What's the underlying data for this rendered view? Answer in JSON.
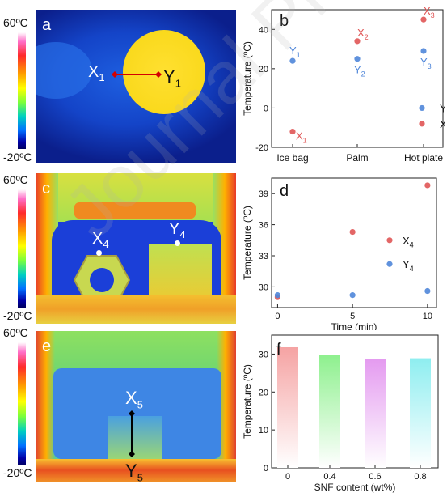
{
  "colorbar": {
    "max": "60ºC",
    "min": "-20ºC"
  },
  "watermark": "Journal Pre-proof",
  "panels": {
    "a": {
      "label": "a",
      "x_label": "X",
      "x_sub": "1",
      "y_label": "Y",
      "y_sub": "1"
    },
    "c": {
      "label": "c",
      "x_label": "X",
      "x_sub": "4",
      "y_label": "Y",
      "y_sub": "4"
    },
    "e": {
      "label": "e",
      "x_label": "X",
      "x_sub": "5",
      "y_label": "Y",
      "y_sub": "5"
    }
  },
  "chart_data": [
    {
      "panel": "b",
      "type": "scatter",
      "categories": [
        "Ice bag",
        "Palm",
        "Hot plate"
      ],
      "ylabel": "Temperature (ºC)",
      "ylim": [
        -20,
        50
      ],
      "yticks": [
        -20,
        0,
        20,
        40
      ],
      "series": [
        {
          "name": "X",
          "color": "#e05555",
          "values": [
            -12,
            34,
            45
          ],
          "labels": [
            "X1",
            "X2",
            "X3"
          ]
        },
        {
          "name": "Y",
          "color": "#4f86d9",
          "values": [
            24,
            25,
            29
          ],
          "labels": [
            "Y1",
            "Y2",
            "Y3"
          ]
        }
      ],
      "legend": "bottom-right"
    },
    {
      "panel": "d",
      "type": "scatter",
      "x": [
        0,
        5,
        10
      ],
      "xlabel": "Time (min)",
      "ylabel": "Temperature (ºC)",
      "xlim": [
        -0.4,
        10.6
      ],
      "ylim": [
        28,
        40.5
      ],
      "xticks": [
        0,
        5,
        10
      ],
      "yticks": [
        30,
        33,
        36,
        39
      ],
      "series": [
        {
          "name": "X4",
          "color": "#e05555",
          "values": [
            29.0,
            35.3,
            39.8
          ]
        },
        {
          "name": "Y4",
          "color": "#4f86d9",
          "values": [
            29.2,
            29.2,
            29.6
          ]
        }
      ],
      "legend": "right"
    },
    {
      "panel": "f",
      "type": "bar",
      "categories": [
        "0",
        "0.4",
        "0.6",
        "0.8"
      ],
      "values": [
        31.8,
        29.7,
        28.8,
        28.9
      ],
      "colors": [
        "#f5a3a3",
        "#8ef08e",
        "#e49af0",
        "#8eeef0"
      ],
      "xlabel": "SNF content (wt%)",
      "ylabel": "Temperature (ºC)",
      "ylim": [
        0,
        35
      ],
      "yticks": [
        0,
        10,
        20,
        30
      ]
    }
  ]
}
